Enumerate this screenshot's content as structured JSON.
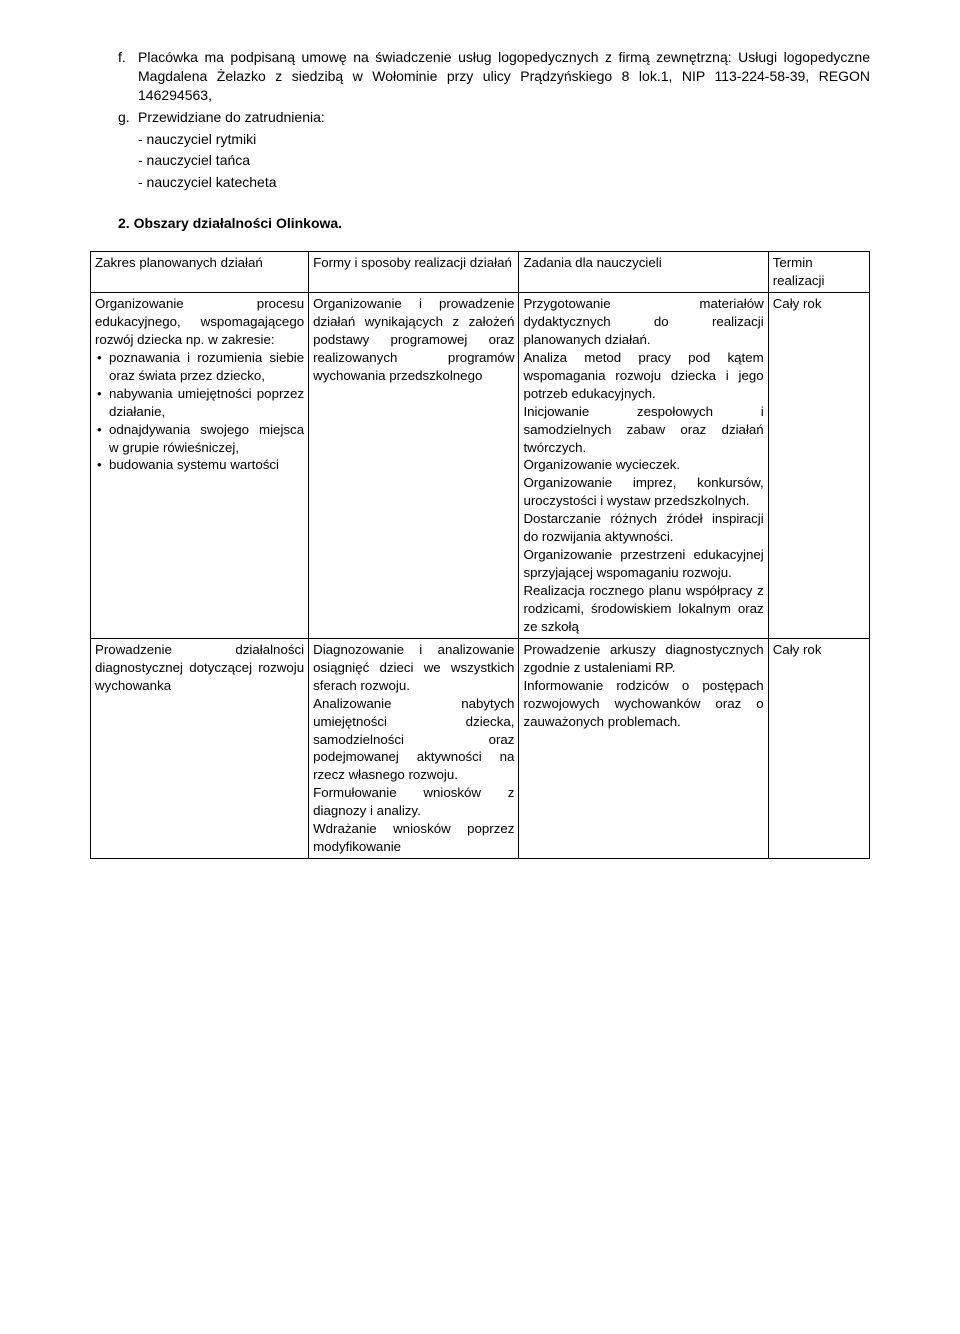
{
  "intro": {
    "item_f_marker": "f.",
    "item_f_text": "Placówka ma podpisaną umowę na świadczenie usług logopedycznych z firmą zewnętrzną: Usługi logopedyczne Magdalena Żelazko z siedzibą w Wołominie przy ulicy Prądzyńskiego 8 lok.1, NIP 113-224-58-39, REGON 146294563,",
    "item_g_marker": "g.",
    "item_g_text": "Przewidziane do zatrudnienia:",
    "sub1": "- nauczyciel rytmiki",
    "sub2": "- nauczyciel tańca",
    "sub3": "- nauczyciel katecheta"
  },
  "heading": "2. Obszary działalności Olinkowa.",
  "table": {
    "header": {
      "c1": "Zakres planowanych działań",
      "c2": "Formy i sposoby realizacji działań",
      "c3": "Zadania dla nauczycieli",
      "c4": "Termin realizacji"
    },
    "row1": {
      "c1_intro": "Organizowanie procesu edukacyjnego, wspomagającego rozwój dziecka np. w zakresie:",
      "c1_b1": "poznawania i rozumienia siebie oraz świata przez dziecko,",
      "c1_b2": "nabywania umiejętności poprzez działanie,",
      "c1_b3": "odnajdywania swojego miejsca w grupie rówieśniczej,",
      "c1_b4": "budowania systemu wartości",
      "c2": "Organizowanie i prowadzenie działań wynikających z założeń podstawy programowej oraz realizowanych programów wychowania przedszkolnego",
      "c3": "Przygotowanie materiałów dydaktycznych do realizacji planowanych działań.\nAnaliza metod pracy pod kątem wspomagania rozwoju dziecka i jego potrzeb edukacyjnych.\nInicjowanie zespołowych i samodzielnych zabaw oraz działań twórczych.\nOrganizowanie wycieczek.\nOrganizowanie imprez, konkursów, uroczystości i wystaw przedszkolnych.\nDostarczanie różnych źródeł inspiracji do rozwijania aktywności.\nOrganizowanie przestrzeni edukacyjnej sprzyjającej wspomaganiu rozwoju.\nRealizacja rocznego planu współpracy z rodzicami, środowiskiem lokalnym oraz ze szkołą",
      "c4": "Cały rok"
    },
    "row2": {
      "c1": "Prowadzenie działalności diagnostycznej dotyczącej rozwoju wychowanka",
      "c2": "Diagnozowanie i analizowanie osiągnięć dzieci we wszystkich sferach rozwoju.\nAnalizowanie nabytych umiejętności dziecka, samodzielności oraz podejmowanej aktywności na rzecz własnego rozwoju.\nFormułowanie wniosków z diagnozy i analizy.\nWdrażanie wniosków poprzez modyfikowanie",
      "c3": "Prowadzenie arkuszy diagnostycznych zgodnie z ustaleniami RP.\nInformowanie rodziców o postępach rozwojowych wychowanków oraz o zauważonych problemach.",
      "c4": "Cały rok"
    }
  }
}
